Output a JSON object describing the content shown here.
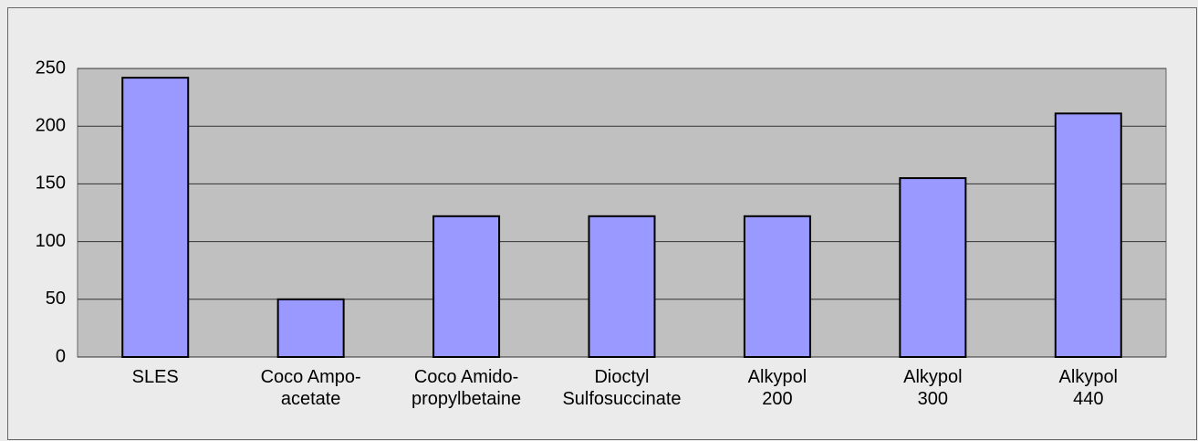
{
  "chart_data": {
    "type": "bar",
    "categories": [
      [
        "SLES"
      ],
      [
        "Coco Ampo-",
        "acetate"
      ],
      [
        "Coco Amido-",
        "propylbetaine"
      ],
      [
        "Dioctyl",
        "Sulfosuccinate"
      ],
      [
        "Alkypol",
        "200"
      ],
      [
        "Alkypol",
        "300"
      ],
      [
        "Alkypol",
        "440"
      ]
    ],
    "values": [
      242,
      50,
      122,
      122,
      122,
      155,
      211
    ],
    "color": "#9999ff",
    "ylim": [
      0,
      250
    ],
    "yticks": [
      0,
      50,
      100,
      150,
      200,
      250
    ],
    "grid": true
  }
}
